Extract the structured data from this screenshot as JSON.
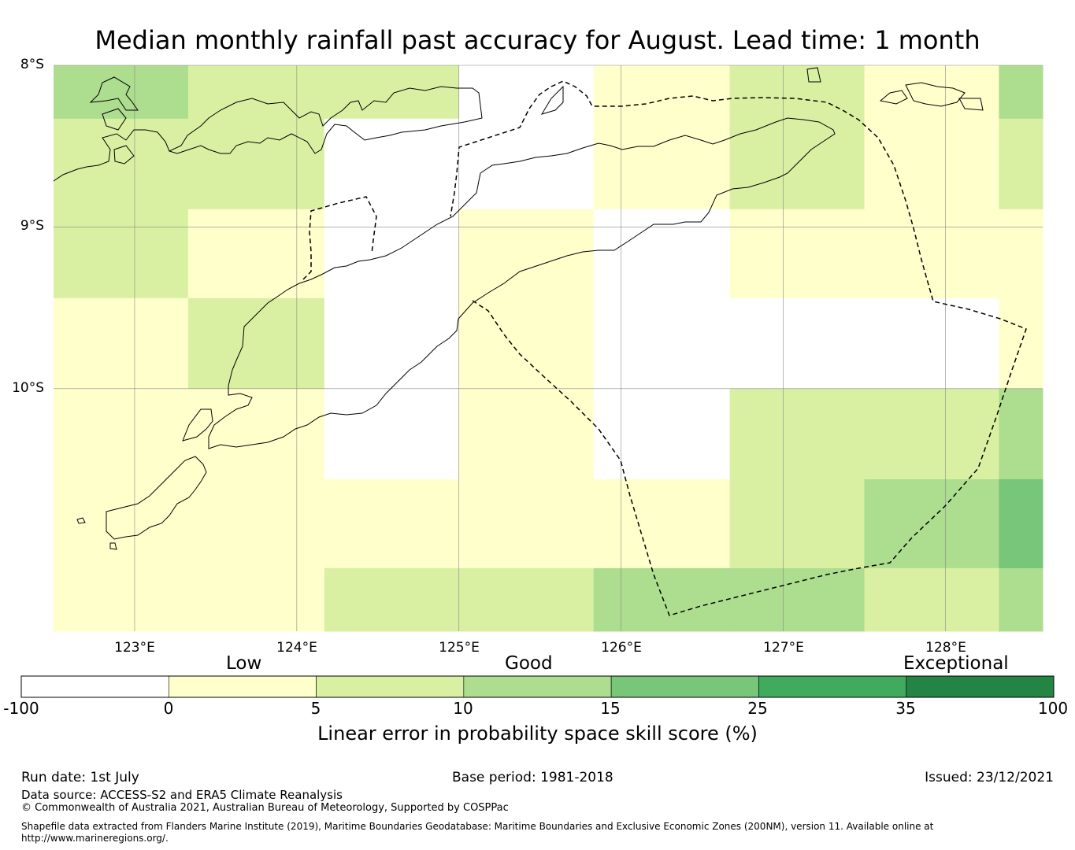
{
  "title": "Median monthly rainfall past accuracy for August. Lead time: 1 month",
  "map": {
    "lat_labels": [
      "8°S",
      "9°S",
      "10°S"
    ],
    "lon_labels": [
      "123°E",
      "124°E",
      "125°E",
      "126°E",
      "127°E",
      "128°E"
    ],
    "lon_range": [
      122.5,
      128.6
    ],
    "lat_range": [
      -8.0,
      -11.5
    ],
    "grid_lons": [
      123,
      124,
      125,
      126,
      127,
      128
    ],
    "grid_lats": [
      -8,
      -9,
      -10
    ],
    "cell_lon_edges": [
      122.5,
      123.33,
      124.17,
      125.0,
      125.83,
      126.67,
      127.5,
      128.33,
      128.6
    ],
    "cell_lat_edges": [
      -8.0,
      -8.33,
      -8.89,
      -9.44,
      -10.0,
      -10.56,
      -11.11,
      -11.5
    ],
    "skill_values": [
      [
        12,
        7,
        7,
        -1,
        3,
        7,
        2,
        12
      ],
      [
        7,
        7,
        -1,
        -1,
        3,
        7,
        2,
        7
      ],
      [
        7,
        2,
        -1,
        2,
        -1,
        2,
        2,
        2
      ],
      [
        2,
        7,
        -1,
        2,
        -1,
        -1,
        -1,
        2
      ],
      [
        2,
        2,
        -1,
        2,
        -1,
        7,
        7,
        12
      ],
      [
        2,
        2,
        2,
        2,
        2,
        7,
        12,
        17
      ],
      [
        2,
        2,
        7,
        7,
        12,
        12,
        7,
        12
      ]
    ]
  },
  "colorbar": {
    "category_labels": [
      "Low",
      "Good",
      "Exceptional"
    ],
    "ticks": [
      "-100",
      "0",
      "5",
      "10",
      "15",
      "25",
      "35",
      "100"
    ],
    "bins": [
      {
        "from": -100,
        "to": 0,
        "color": "#ffffff"
      },
      {
        "from": 0,
        "to": 5,
        "color": "#ffffcc"
      },
      {
        "from": 5,
        "to": 10,
        "color": "#d9f0a3"
      },
      {
        "from": 10,
        "to": 15,
        "color": "#addd8e"
      },
      {
        "from": 15,
        "to": 25,
        "color": "#78c679"
      },
      {
        "from": 25,
        "to": 35,
        "color": "#41ab5d"
      },
      {
        "from": 35,
        "to": 100,
        "color": "#238443"
      }
    ],
    "label": "Linear error in probability space skill score (%)"
  },
  "footer": {
    "run_date": "Run date: 1st July",
    "base_period": "Base period: 1981-2018",
    "issued": "Issued: 23/12/2021",
    "data_source": "Data source: ACCESS-S2 and ERA5 Climate Reanalysis",
    "copyright": "© Commonwealth of Australia 2021, Australian Bureau of Meteorology, Supported by COSPPac",
    "shapefile_line1": "Shapefile data extracted from Flanders Marine Institute (2019), Maritime Boundaries Geodatabase: Maritime Boundaries and Exclusive Economic Zones (200NM), version 11. Available online at",
    "shapefile_line2": "http://www.marineregions.org/."
  }
}
